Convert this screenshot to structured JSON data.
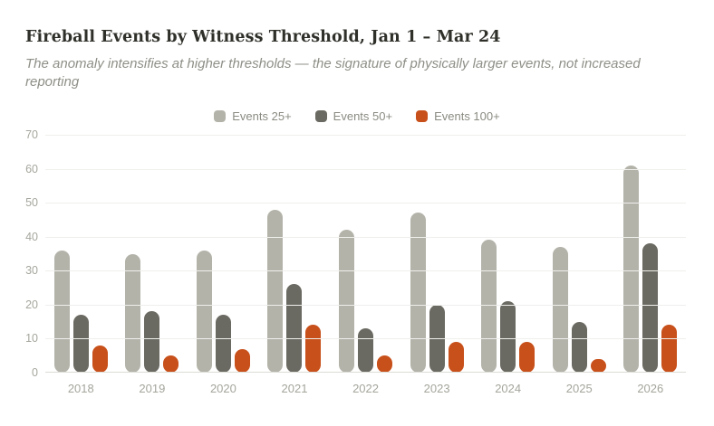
{
  "header": {
    "title": "Fireball Events by Witness Threshold, Jan 1 – Mar 24",
    "subtitle": "The anomaly intensifies at higher thresholds — the signature of physically larger events, not increased reporting"
  },
  "colors": {
    "background": "#ffffff",
    "title_text": "#30302b",
    "subtitle_text": "#8f8f88",
    "axis_text": "#a5a59d",
    "gridline": "#efefec"
  },
  "chart_data": {
    "type": "bar",
    "title": "Fireball Events by Witness Threshold, Jan 1 – Mar 24",
    "subtitle": "The anomaly intensifies at higher thresholds — the signature of physically larger events, not increased reporting",
    "categories": [
      "2018",
      "2019",
      "2020",
      "2021",
      "2022",
      "2023",
      "2024",
      "2025",
      "2026"
    ],
    "series": [
      {
        "name": "Events 25+",
        "color": "#b4b3aa",
        "values": [
          36,
          35,
          36,
          48,
          42,
          47,
          39,
          37,
          61
        ]
      },
      {
        "name": "Events 50+",
        "color": "#6b6a62",
        "values": [
          17,
          18,
          17,
          26,
          13,
          20,
          21,
          15,
          38
        ]
      },
      {
        "name": "Events 100+",
        "color": "#c8501a",
        "values": [
          8,
          5,
          7,
          14,
          5,
          9,
          9,
          4,
          14
        ]
      }
    ],
    "xlabel": "",
    "ylabel": "",
    "ylim": [
      0,
      70
    ],
    "yticks": [
      0,
      10,
      20,
      30,
      40,
      50,
      60,
      70
    ],
    "grid": true,
    "legend_position": "top-center"
  }
}
